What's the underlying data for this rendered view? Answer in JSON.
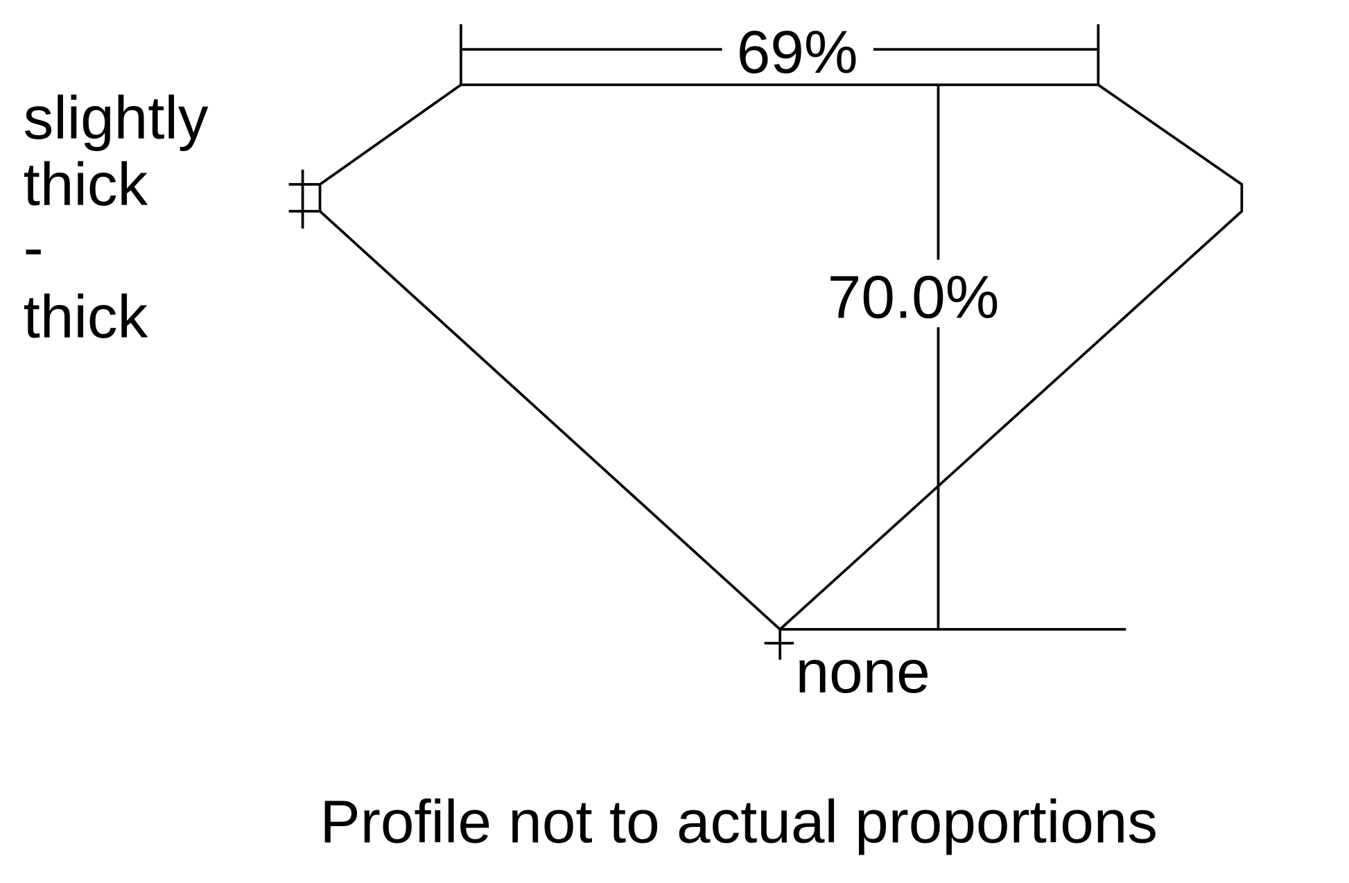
{
  "diagram": {
    "table_percent": "69%",
    "depth_percent": "70.0%",
    "girdle_label": [
      "slightly",
      "thick",
      "-",
      "thick"
    ],
    "culet_label": "none",
    "footnote": "Profile not to actual proportions",
    "line_color": "#000000",
    "background": "#ffffff"
  }
}
